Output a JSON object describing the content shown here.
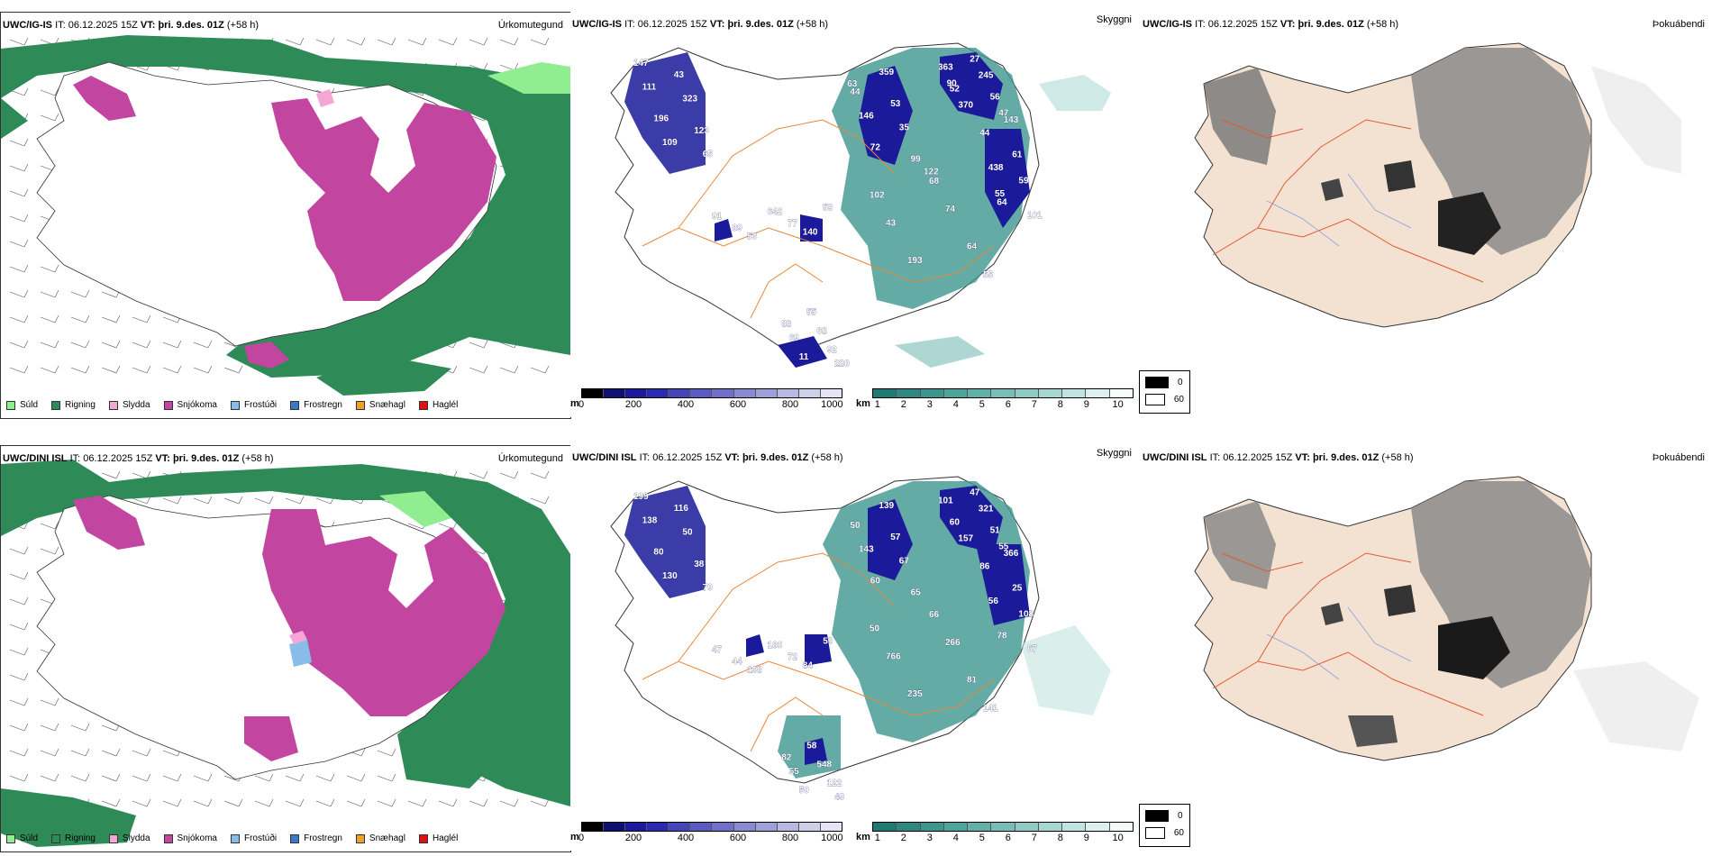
{
  "colors": {
    "precip_rain": "#2e8b57",
    "precip_snow": "#c245a0",
    "precip_drizzle": "#90ee90",
    "precip_sleet": "#f0a0d0",
    "roads": "#e8873a",
    "land": "#f3e2d2"
  },
  "rows": [
    {
      "model": "UWC/IG-IS",
      "it_label": "IT:",
      "it_value": "06.12.2025 15Z",
      "vt_label": "VT:",
      "vt_value": "þri. 9.des. 01Z",
      "lead": "(+58 h)",
      "precip_title": "Úrkomutegund",
      "vis_title": "Skyggni",
      "cloud_title": "Þokuábendi",
      "vis_labels": [
        "147",
        "44",
        "52",
        "64",
        "68",
        "77",
        "92",
        "196",
        "72",
        "27",
        "61",
        "64",
        "59",
        "88",
        "43",
        "53",
        "56",
        "101",
        "102",
        "89",
        "11",
        "123",
        "99",
        "363",
        "438",
        "193",
        "642",
        "68",
        "111",
        "146",
        "370",
        "143",
        "74",
        "140",
        "280",
        "109",
        "359",
        "245",
        "59",
        "55",
        "91",
        "69",
        "323",
        "35",
        "47",
        "44",
        "43",
        "53",
        "55",
        "65",
        "63",
        "90",
        "55",
        "122"
      ]
    },
    {
      "model": "UWC/DINI ISL",
      "it_label": "IT:",
      "it_value": "06.12.2025 15Z",
      "vt_label": "VT:",
      "vt_value": "þri. 9.des. 01Z",
      "lead": "(+58 h)",
      "precip_title": "Úrkomutegund",
      "vis_title": "Skyggni",
      "cloud_title": "Þokuábendi",
      "vis_labels": [
        "199",
        "50",
        "60",
        "78",
        "66",
        "72",
        "122",
        "80",
        "60",
        "47",
        "25",
        "81",
        "59",
        "82",
        "116",
        "57",
        "51",
        "67",
        "50",
        "44",
        "50",
        "38",
        "65",
        "101",
        "56",
        "235",
        "180",
        "548",
        "138",
        "143",
        "157",
        "366",
        "266",
        "84",
        "49",
        "130",
        "139",
        "321",
        "108",
        "141",
        "47",
        "55",
        "50",
        "67",
        "55",
        "86",
        "766",
        "198",
        "58",
        "79"
      ]
    }
  ],
  "precip_legend": [
    "Súld",
    "Rigning",
    "Slydda",
    "Snjókoma",
    "Frostúði",
    "Frostregn",
    "Snæhagl",
    "Haglél"
  ],
  "precip_legend_colors": [
    "#90ee90",
    "#2e8b57",
    "#f4a6d7",
    "#c245a0",
    "#87bde8",
    "#3a78c8",
    "#f0a030",
    "#e01010"
  ],
  "vis_height_bar": {
    "unit": "m",
    "ticks": [
      "0",
      "200",
      "400",
      "600",
      "800",
      "1000"
    ],
    "colors": [
      "#000000",
      "#101070",
      "#1a1a9a",
      "#2a2ab0",
      "#4545b8",
      "#5a5ac0",
      "#7070c8",
      "#8a8ad0",
      "#a0a0d8",
      "#b8b8e0",
      "#cfcfea",
      "#e4e4f4"
    ]
  },
  "vis_km_bar": {
    "unit": "km",
    "ticks": [
      "1",
      "2",
      "3",
      "4",
      "5",
      "6",
      "7",
      "8",
      "9",
      "10"
    ],
    "colors": [
      "#1f7a72",
      "#2e8880",
      "#3d968e",
      "#4ea39b",
      "#62b0a8",
      "#78bdb6",
      "#90cac4",
      "#a8d7d2",
      "#c2e4e0",
      "#dcf0ee",
      "#f4fbfa"
    ]
  },
  "cloud_legend": [
    {
      "value": "0",
      "color": "#000000"
    },
    {
      "value": "60",
      "color": "#ffffff"
    }
  ]
}
